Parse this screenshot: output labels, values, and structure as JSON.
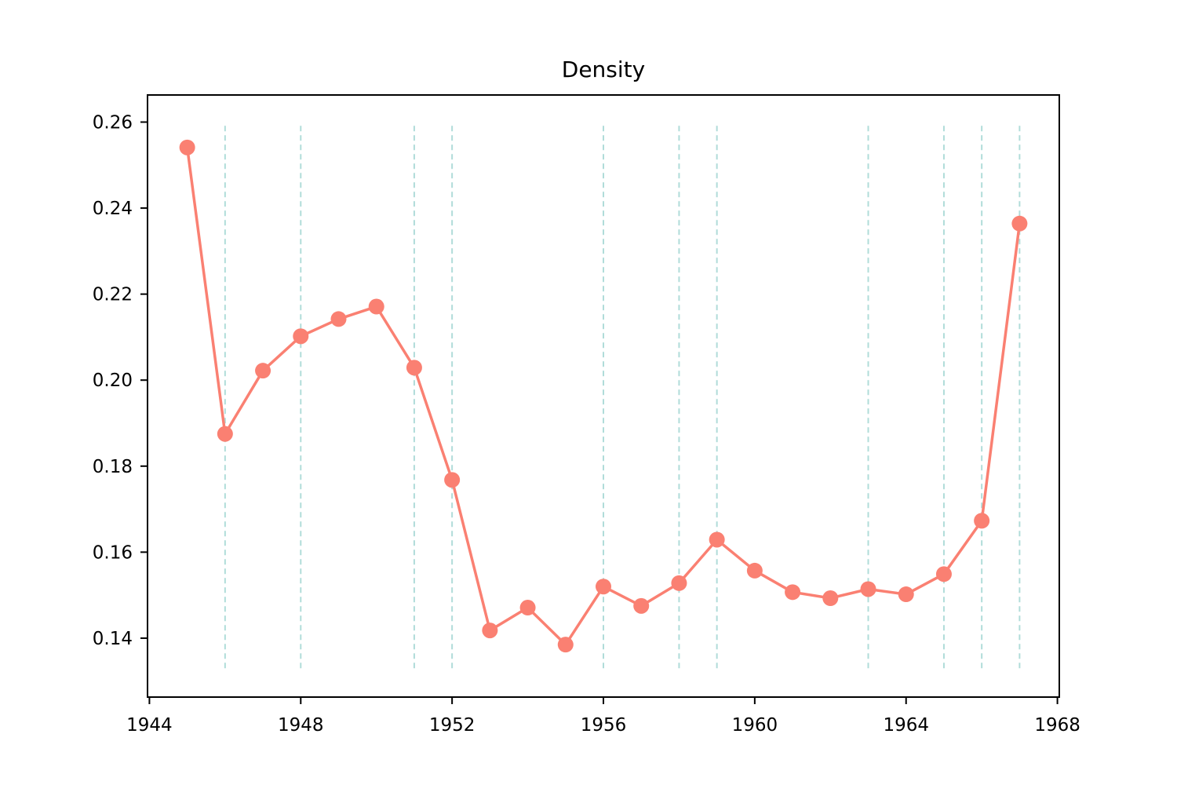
{
  "chart_data": {
    "type": "line",
    "title": "Density",
    "xlabel": "",
    "ylabel": "",
    "xlim": [
      1943.95,
      1968.05
    ],
    "ylim": [
      0.1263,
      0.2663
    ],
    "xticks": [
      1944,
      1948,
      1952,
      1956,
      1960,
      1964,
      1968
    ],
    "yticks": [
      0.14,
      0.16,
      0.18,
      0.2,
      0.22,
      0.24,
      0.26
    ],
    "ytick_labels": [
      "0.14",
      "0.16",
      "0.18",
      "0.20",
      "0.22",
      "0.24",
      "0.26"
    ],
    "grid": false,
    "series": [
      {
        "x": [
          1945,
          1946,
          1947,
          1948,
          1949,
          1950,
          1951,
          1952,
          1953,
          1954,
          1955,
          1956,
          1957,
          1958,
          1959,
          1960,
          1961,
          1962,
          1963,
          1964,
          1965,
          1966,
          1967
        ],
        "values": [
          0.2541,
          0.1875,
          0.2022,
          0.2102,
          0.2142,
          0.2171,
          0.2029,
          0.1768,
          0.1418,
          0.1471,
          0.1385,
          0.152,
          0.1475,
          0.1528,
          0.1629,
          0.1557,
          0.1507,
          0.1493,
          0.1514,
          0.1502,
          0.1549,
          0.1673,
          0.2364
        ]
      }
    ],
    "vertical_lines": [
      1946,
      1948,
      1951,
      1952,
      1956,
      1958,
      1959,
      1963,
      1965,
      1966,
      1967
    ],
    "vertical_line_range": [
      0.133,
      0.2597
    ],
    "colors": {
      "series": "#fa8072",
      "vertical_lines": "#b0dcd9",
      "axes": "#000000"
    }
  }
}
